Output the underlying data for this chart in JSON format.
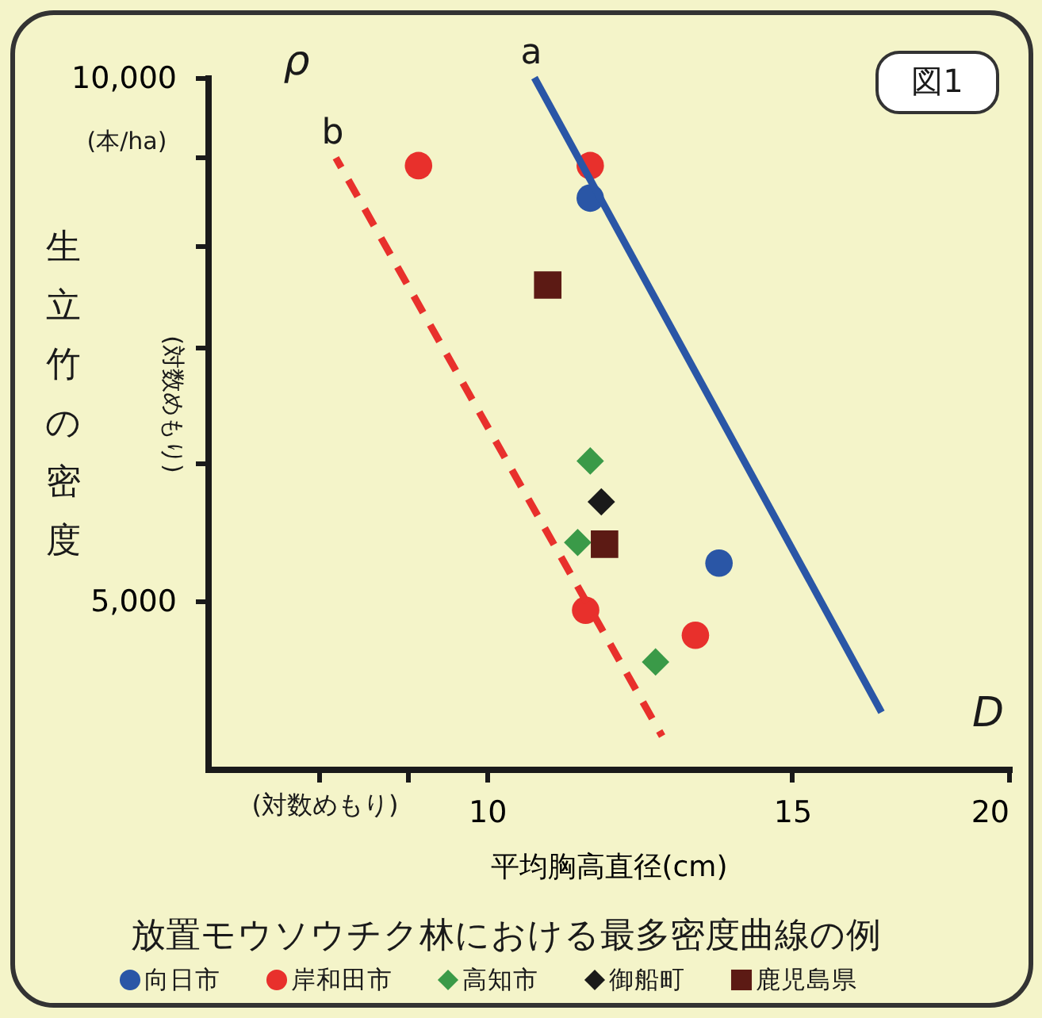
{
  "chart_data": {
    "type": "scatter",
    "title": "放置モウソウチク林における最多密度曲線の例",
    "xlabel": "平均胸高直径(cm)",
    "ylabel": "生立竹の密度",
    "log": "xy",
    "grid": false,
    "legend": "bottom",
    "xlim": [
      6.9,
      20
    ],
    "ylim": [
      4000,
      10000
    ],
    "xticks": [
      {
        "value": 8,
        "label": null
      },
      {
        "value": 9,
        "label": null
      },
      10,
      15,
      20
    ],
    "yticks": [
      {
        "value": 5000,
        "label": "5,000"
      },
      {
        "value": 6000,
        "label": null
      },
      {
        "value": 7000,
        "label": null
      },
      {
        "value": 8000,
        "label": null
      },
      {
        "value": 9000,
        "label": null
      },
      {
        "value": 10000,
        "label": "10,000"
      }
    ],
    "series": [
      {
        "name": "向日市",
        "color": "#2a56a6",
        "marker": "circle",
        "x": [
          11.47,
          13.61
        ],
        "values": [
          8525,
          5255
        ]
      },
      {
        "name": "岸和田市",
        "color": "#e8302c",
        "marker": "circle",
        "x": [
          9.13,
          11.47,
          11.4,
          13.19
        ],
        "values": [
          8900,
          8900,
          4937,
          4776
        ]
      },
      {
        "name": "高知市",
        "color": "#3a9a48",
        "marker": "diamond",
        "x": [
          11.47,
          11.28,
          12.51
        ],
        "values": [
          6017,
          5401,
          4610
        ]
      },
      {
        "name": "御船町",
        "color": "#1a1a1a",
        "marker": "diamond",
        "x": [
          11.64
        ],
        "values": [
          5700
        ]
      },
      {
        "name": "鹿児島県",
        "color": "#5c1a14",
        "marker": "square",
        "x": [
          10.84,
          11.69
        ],
        "values": [
          7597,
          5389
        ]
      },
      {
        "type": "line",
        "color": "#2a56a6",
        "line_style": "solid",
        "x": [
          10.65,
          16.89
        ],
        "values": [
          10000,
          4313
        ]
      },
      {
        "type": "line",
        "color": "#e8302c",
        "line_style": "dashed",
        "x": [
          8.18,
          12.62
        ],
        "values": [
          8992,
          4178
        ]
      }
    ],
    "annotations": [
      {
        "text": "a",
        "x": 10.65,
        "y": 10000
      },
      {
        "text": "b",
        "x": 8.18,
        "y": 8992
      },
      "ρ",
      "D",
      "(本/ha)",
      "(対数めもり)",
      "(対数めもり)",
      "図1"
    ]
  }
}
